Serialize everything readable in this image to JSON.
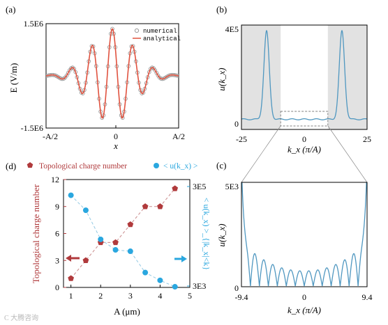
{
  "chart_data": [
    {
      "panel": "(a)",
      "type": "line",
      "xlabel": "x",
      "ylabel": "E (V/m)",
      "x_ticks": [
        "-A/2",
        "0",
        "A/2"
      ],
      "y_ticks": [
        "1.5E6",
        "0",
        "-1.5E6"
      ],
      "ylim": [
        -1500000,
        1500000
      ],
      "legend": {
        "placement": "top-right",
        "entries": [
          "numerical",
          "analytical"
        ]
      },
      "colors": {
        "analytical": "#e0523f",
        "numerical": "#9a9a9a"
      },
      "waveform": {
        "cycles": 6.5,
        "envelope_width": 0.6,
        "peak_amplitude": 1350000
      }
    },
    {
      "panel": "(b)",
      "type": "line",
      "xlabel": "k_x (π/A)",
      "ylabel": "u(k_x)",
      "x_ticks": [
        "-25",
        "0",
        "25"
      ],
      "y_ticks": [
        "4E5",
        "0"
      ],
      "xlim": [
        -25,
        25
      ],
      "ylim": [
        0,
        400000
      ],
      "shaded_regions": [
        [
          -25,
          -9.4
        ],
        [
          9.4,
          25
        ]
      ],
      "peaks": [
        {
          "k_x": -15,
          "u": 390000
        },
        {
          "k_x": 15,
          "u": 390000
        }
      ],
      "colors": {
        "line": "#4f97c0",
        "shade": "#e2e2e2"
      }
    },
    {
      "panel": "(c)",
      "type": "line",
      "xlabel": "k_x (π/A)",
      "ylabel": "u(k_x)",
      "x_ticks": [
        "-9.4",
        "0",
        "9.4"
      ],
      "y_ticks": [
        "5E3",
        "0"
      ],
      "xlim": [
        -9.4,
        9.4
      ],
      "ylim": [
        0,
        5000
      ],
      "zero_count": 14,
      "side_lobe_max": 2200,
      "center_lobe_max": 750,
      "colors": {
        "line": "#4f97c0"
      }
    },
    {
      "panel": "(d)",
      "type": "scatter",
      "xlabel": "A (μm)",
      "ylabel_left": "Topological charge number",
      "ylabel_right": "< u(k_x) >_{|k_x|<k}",
      "x_ticks": [
        "1",
        "2",
        "3",
        "4",
        "5"
      ],
      "y_ticks_left": [
        "0",
        "3",
        "6",
        "9",
        "12"
      ],
      "y_ticks_right": [
        "3E5",
        "3E3"
      ],
      "xlim": [
        0.75,
        5
      ],
      "ylim_left": [
        0,
        12
      ],
      "ylim_right_log": [
        3000,
        300000
      ],
      "series": [
        {
          "name": "Topological charge number",
          "axis": "left",
          "marker": "pentagon",
          "color": "#b03a3c",
          "x": [
            1,
            1.5,
            2,
            2.5,
            3,
            3.5,
            4,
            4.5
          ],
          "y": [
            1,
            3,
            5,
            5,
            7,
            9,
            9,
            11
          ]
        },
        {
          "name": "< u(k_x) >",
          "axis": "right",
          "marker": "circle",
          "color": "#2aa7df",
          "x": [
            1,
            1.5,
            2,
            2.5,
            3,
            3.5,
            4,
            4.5
          ],
          "y": [
            200000,
            100000,
            26000,
            16000,
            15000,
            5600,
            3900,
            2900
          ]
        }
      ]
    }
  ],
  "watermark": "C 大腾咨询"
}
